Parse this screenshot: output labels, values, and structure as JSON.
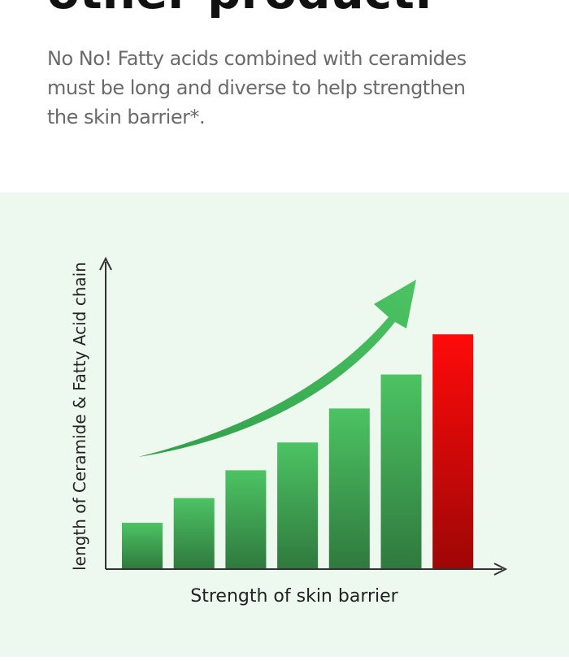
{
  "heading": "other product.",
  "paragraph": [
    "No No! Fatty acids combined with ceramides",
    "must be long and diverse to help strengthen",
    "the skin barrier*."
  ],
  "chart_data": {
    "type": "bar",
    "x_label": "Strength of skin barrier",
    "y_label": "length of Ceramide & Fatty Acid chain",
    "categories": [
      null,
      null,
      null,
      null,
      null,
      null,
      null
    ],
    "values": [
      15,
      23,
      32,
      41,
      52,
      63,
      76
    ],
    "colors": [
      "#4cc363",
      "#4cc363",
      "#4cc363",
      "#4cc363",
      "#4cc363",
      "#4cc363",
      "#ff0a0a"
    ],
    "ylim": [
      0,
      100
    ]
  }
}
